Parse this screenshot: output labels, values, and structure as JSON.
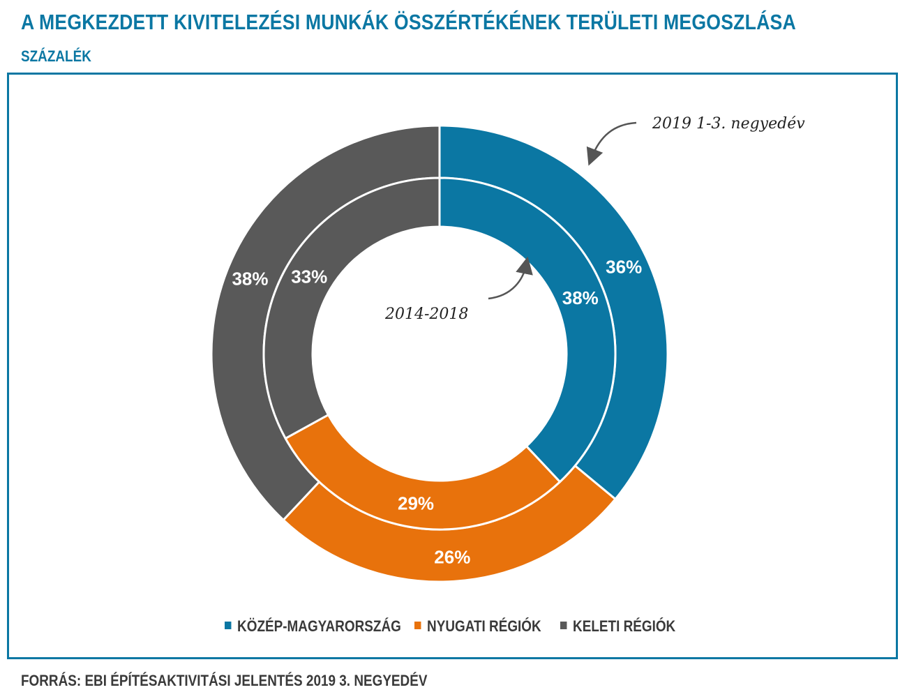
{
  "header": {
    "title": "A MEGKEZDETT KIVITELEZÉSI MUNKÁK ÖSSZÉRTÉKÉNEK TERÜLETI MEGOSZLÁSA",
    "subtitle": "SZÁZALÉK"
  },
  "footer": {
    "source": "FORRÁS: EBI ÉPÍTÉSAKTIVITÁSI JELENTÉS 2019 3. NEGYEDÉV"
  },
  "colors": {
    "accent": "#0b77a3",
    "kozep": "#0b77a3",
    "nyugati": "#e8720c",
    "keleti": "#595959"
  },
  "chart_data": {
    "type": "donut",
    "categories": [
      "KÖZÉP-MAGYARORSZÁG",
      "NYUGATI RÉGIÓK",
      "KELETI RÉGIÓK"
    ],
    "series": [
      {
        "name": "2019 1-3. negyedév",
        "ring": "outer",
        "values": [
          36,
          26,
          38
        ]
      },
      {
        "name": "2014-2018",
        "ring": "inner",
        "values": [
          38,
          29,
          33
        ]
      }
    ],
    "unit": "%",
    "legend": "bottom"
  }
}
